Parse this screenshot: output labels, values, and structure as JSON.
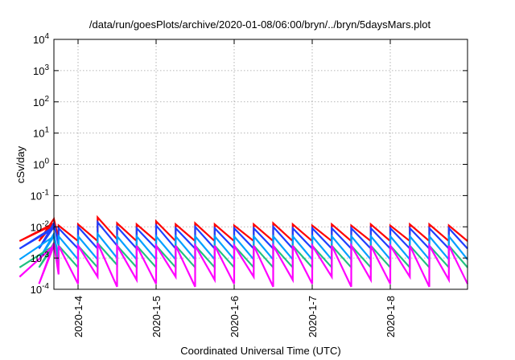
{
  "chart_data": {
    "type": "line",
    "title": "/data/run/goesPlots/archive/2020-01-08/06:00/bryn/../bryn/5daysMars.plot",
    "xlabel": "Coordinated Universal Time (UTC)",
    "ylabel": "cSv/day",
    "yscale": "log",
    "ylim": [
      0.0001,
      10000
    ],
    "xlim": [
      "2020-01-03 00:00",
      "2020-01-08 06:00"
    ],
    "y_ticks": [
      {
        "value": 0.0001,
        "base": "10",
        "exp": "-4"
      },
      {
        "value": 0.001,
        "base": "10",
        "exp": "-3"
      },
      {
        "value": 0.01,
        "base": "10",
        "exp": "-2"
      },
      {
        "value": 0.1,
        "base": "10",
        "exp": "-1"
      },
      {
        "value": 1,
        "base": "10",
        "exp": "0"
      },
      {
        "value": 10,
        "base": "10",
        "exp": "1"
      },
      {
        "value": 100,
        "base": "10",
        "exp": "2"
      },
      {
        "value": 1000,
        "base": "10",
        "exp": "3"
      },
      {
        "value": 10000,
        "base": "10",
        "exp": "4"
      }
    ],
    "x_ticks": [
      {
        "label": "2020-1-4",
        "day": 1
      },
      {
        "label": "2020-1-5",
        "day": 2
      },
      {
        "label": "2020-1-6",
        "day": 3
      },
      {
        "label": "2020-1-7",
        "day": 4
      },
      {
        "label": "2020-1-8",
        "day": 5
      }
    ],
    "grid": true,
    "sawtooth_period_hours": 6,
    "series": [
      {
        "color": "#ff0000",
        "peaks": [
          0.012,
          0.013,
          0.018,
          0.011,
          0.012,
          0.02,
          0.013,
          0.012,
          0.015,
          0.012,
          0.013,
          0.012,
          0.011,
          0.012,
          0.013,
          0.012,
          0.011,
          0.012,
          0.011,
          0.012,
          0.011,
          0.012,
          0.012,
          0.011,
          0.012,
          0.011,
          0.012,
          0.018,
          0.012,
          0.011,
          0.012,
          0.011,
          0.012,
          0.012,
          0.011,
          0.012,
          0.011,
          0.014,
          0.016,
          0.012,
          0.014,
          0.015,
          0.013,
          0.012,
          0.014,
          0.013,
          0.012,
          0.013,
          0.012,
          0.013,
          0.013,
          0.012,
          0.012,
          0.025
        ],
        "troughs": [
          0.0035,
          0.0035,
          0.004,
          0.0035,
          0.0035,
          0.004,
          0.0035,
          0.0035,
          0.0035,
          0.0035,
          0.0035,
          0.0035,
          0.0035,
          0.0035,
          0.0035,
          0.0035,
          0.0035,
          0.0035,
          0.0035,
          0.0035,
          0.0035,
          0.0035,
          0.0035,
          0.0035,
          0.0035,
          0.0035,
          0.0035,
          0.0035,
          0.0035,
          0.0035,
          0.0035,
          0.0035,
          0.0035,
          0.0035,
          0.0035,
          0.0035,
          0.0035,
          0.0035,
          0.0035,
          0.0035,
          0.0035,
          0.0035,
          0.0035,
          0.0035,
          0.0035,
          0.0035,
          0.0035,
          0.0035,
          0.0035,
          0.0035,
          0.0035,
          0.0035,
          0.0035,
          0.009
        ]
      },
      {
        "color": "#1f3fff",
        "peaks": [
          0.009,
          0.01,
          0.013,
          0.009,
          0.01,
          0.014,
          0.01,
          0.009,
          0.011,
          0.009,
          0.01,
          0.009,
          0.009,
          0.009,
          0.01,
          0.009,
          0.009,
          0.009,
          0.009,
          0.009,
          0.009,
          0.009,
          0.009,
          0.009,
          0.009,
          0.009,
          0.009,
          0.012,
          0.009,
          0.009,
          0.009,
          0.009,
          0.009,
          0.009,
          0.009,
          0.009,
          0.009,
          0.01,
          0.011,
          0.009,
          0.01,
          0.011,
          0.01,
          0.009,
          0.01,
          0.01,
          0.009,
          0.01,
          0.009,
          0.01,
          0.01,
          0.009,
          0.009,
          0.017
        ],
        "troughs": [
          0.002,
          0.002,
          0.0025,
          0.002,
          0.002,
          0.0025,
          0.002,
          0.002,
          0.002,
          0.002,
          0.002,
          0.002,
          0.002,
          0.002,
          0.002,
          0.002,
          0.002,
          0.002,
          0.002,
          0.002,
          0.002,
          0.002,
          0.002,
          0.002,
          0.002,
          0.002,
          0.002,
          0.002,
          0.002,
          0.002,
          0.002,
          0.002,
          0.002,
          0.002,
          0.002,
          0.002,
          0.002,
          0.002,
          0.002,
          0.002,
          0.002,
          0.002,
          0.002,
          0.002,
          0.002,
          0.002,
          0.002,
          0.002,
          0.002,
          0.002,
          0.002,
          0.002,
          0.002,
          0.006
        ]
      },
      {
        "color": "#00a0ff",
        "peaks": [
          0.005,
          0.005,
          0.006,
          0.005,
          0.005,
          0.006,
          0.005,
          0.005,
          0.005,
          0.005,
          0.005,
          0.005,
          0.005,
          0.005,
          0.005,
          0.005,
          0.005,
          0.005,
          0.005,
          0.005,
          0.005,
          0.005,
          0.005,
          0.005,
          0.005,
          0.005,
          0.005,
          0.006,
          0.005,
          0.005,
          0.005,
          0.005,
          0.005,
          0.005,
          0.005,
          0.005,
          0.005,
          0.005,
          0.006,
          0.005,
          0.005,
          0.006,
          0.005,
          0.005,
          0.005,
          0.005,
          0.005,
          0.005,
          0.005,
          0.005,
          0.005,
          0.005,
          0.005,
          0.008
        ],
        "troughs": [
          0.0009,
          0.0009,
          0.001,
          0.0009,
          0.0009,
          0.001,
          0.0009,
          0.0009,
          0.0009,
          0.0009,
          0.0009,
          0.0009,
          0.0009,
          0.0009,
          0.0009,
          0.0009,
          0.0009,
          0.0009,
          0.0009,
          0.0009,
          0.0009,
          0.0009,
          0.0009,
          0.0009,
          0.0009,
          0.0009,
          0.0009,
          0.0009,
          0.0009,
          0.0009,
          0.0009,
          0.0009,
          0.0009,
          0.0009,
          0.0009,
          0.0009,
          0.0009,
          0.0009,
          0.0009,
          0.0009,
          0.0009,
          0.0009,
          0.0009,
          0.0009,
          0.0009,
          0.0009,
          0.0009,
          0.0009,
          0.0009,
          0.0009,
          0.0009,
          0.0009,
          0.0009,
          0.0025
        ]
      },
      {
        "color": "#20c080",
        "peaks": [
          0.0025,
          0.0025,
          0.003,
          0.0025,
          0.0025,
          0.003,
          0.0025,
          0.0025,
          0.0025,
          0.0025,
          0.0025,
          0.0025,
          0.0025,
          0.0025,
          0.0025,
          0.0025,
          0.0025,
          0.0025,
          0.0025,
          0.0025,
          0.0025,
          0.0025,
          0.0025,
          0.0025,
          0.0025,
          0.0025,
          0.0025,
          0.003,
          0.0025,
          0.0025,
          0.0025,
          0.0025,
          0.0025,
          0.0025,
          0.0025,
          0.0025,
          0.0025,
          0.0025,
          0.003,
          0.0025,
          0.0025,
          0.003,
          0.0025,
          0.0025,
          0.0025,
          0.0025,
          0.0025,
          0.0025,
          0.0025,
          0.0025,
          0.0025,
          0.0025,
          0.0025,
          0.004
        ],
        "troughs": [
          0.0005,
          0.0005,
          0.0006,
          0.0005,
          0.0005,
          0.0006,
          0.0005,
          0.0005,
          0.0005,
          0.0005,
          0.0005,
          0.0005,
          0.0005,
          0.0005,
          0.0005,
          0.0005,
          0.0005,
          0.0005,
          0.0005,
          0.0005,
          0.0005,
          0.0005,
          0.0005,
          0.0005,
          0.0005,
          0.0005,
          0.0005,
          0.0005,
          0.0005,
          0.0005,
          0.0005,
          0.0005,
          0.0005,
          0.0005,
          0.0005,
          0.0005,
          0.0005,
          0.0005,
          0.0005,
          0.0005,
          0.0005,
          0.0005,
          0.0005,
          0.0005,
          0.0005,
          0.0005,
          0.0005,
          0.0005,
          0.0005,
          0.0005,
          0.0005,
          0.0005,
          0.0005,
          0.0012
        ]
      },
      {
        "color": "#ff00ff",
        "peaks": [
          0.0025,
          0.0025,
          0.003,
          0.0025,
          0.0025,
          0.003,
          0.0025,
          0.0025,
          0.0025,
          0.0025,
          0.0025,
          0.0025,
          0.0025,
          0.0025,
          0.0025,
          0.0025,
          0.0025,
          0.0025,
          0.0025,
          0.0025,
          0.0025,
          0.0025,
          0.0025,
          0.0025,
          0.0025,
          0.0025,
          0.0025,
          0.003,
          0.0025,
          0.0025,
          0.0025,
          0.0025,
          0.0025,
          0.0025,
          0.0025,
          0.0025,
          0.0025,
          0.0025,
          0.003,
          0.0025,
          0.0025,
          0.003,
          0.0025,
          0.0025,
          0.0025,
          0.0025,
          0.0025,
          0.0025,
          0.0025,
          0.0025,
          0.0025,
          0.0025,
          0.0025,
          0.004
        ],
        "troughs": [
          0.00025,
          0.00015,
          0.0003,
          0.00015,
          0.00025,
          0.00012,
          0.0002,
          0.00015,
          0.00025,
          0.00012,
          0.0002,
          0.00015,
          0.00025,
          0.00012,
          0.0002,
          0.00015,
          0.00025,
          0.00012,
          0.0002,
          0.00015,
          0.00025,
          0.00012,
          0.0002,
          0.00015,
          0.00025,
          0.00012,
          0.0002,
          0.00012,
          0.0002,
          0.00015,
          0.00025,
          0.00012,
          0.0002,
          0.00015,
          0.00025,
          0.00012,
          0.0002,
          0.00015,
          0.00025,
          0.00012,
          0.0002,
          0.00015,
          0.00025,
          0.00012,
          0.0002,
          0.00015,
          0.00025,
          0.00012,
          0.0002,
          0.00015,
          0.00025,
          0.00012,
          0.00015,
          0.001
        ]
      }
    ]
  }
}
